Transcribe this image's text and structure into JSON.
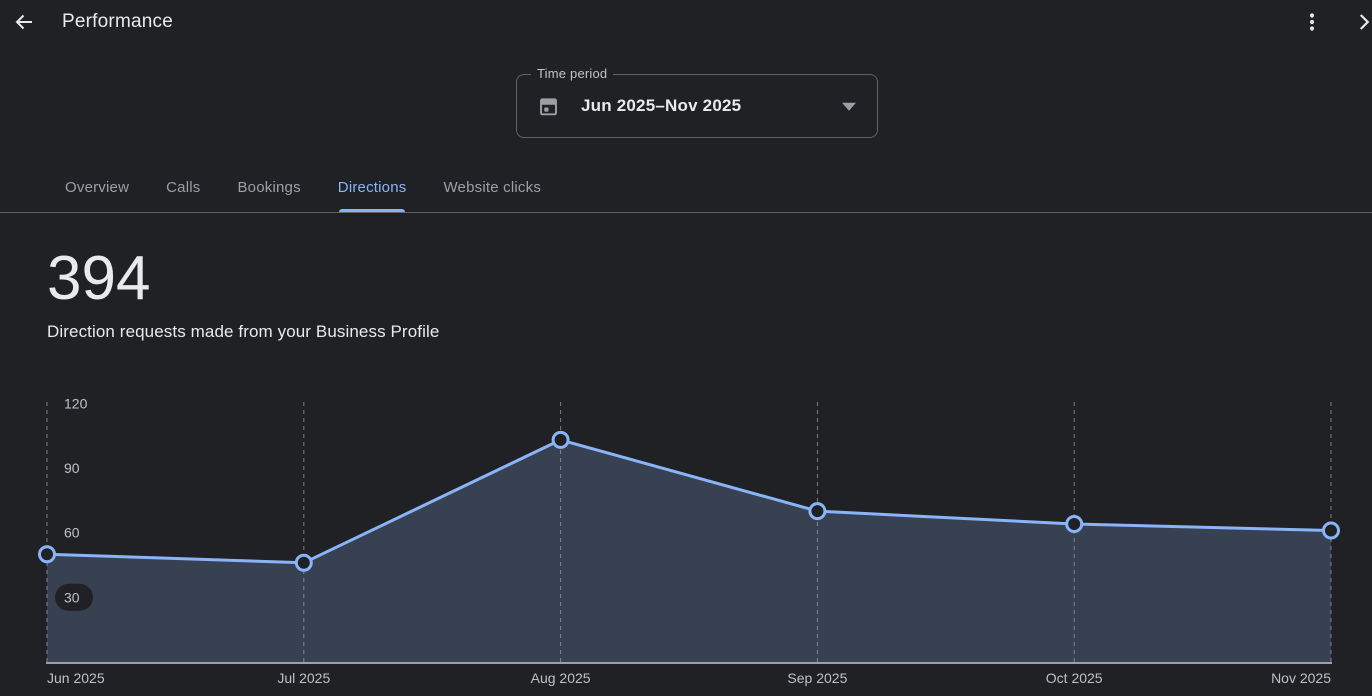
{
  "header": {
    "title": "Performance",
    "icons": {
      "back": "arrow-left",
      "menu": "kebab-menu",
      "forward": "chevron-right"
    }
  },
  "time_period": {
    "label": "Time period",
    "value": "Jun 2025–Nov 2025",
    "icon": "calendar"
  },
  "tabs": [
    {
      "label": "Overview",
      "active": false
    },
    {
      "label": "Calls",
      "active": false
    },
    {
      "label": "Bookings",
      "active": false
    },
    {
      "label": "Directions",
      "active": true
    },
    {
      "label": "Website clicks",
      "active": false
    }
  ],
  "metric": {
    "value": "394",
    "description": "Direction requests made from your Business Profile"
  },
  "chart_data": {
    "type": "area",
    "categories": [
      "Jun 2025",
      "Jul 2025",
      "Aug 2025",
      "Sep 2025",
      "Oct 2025",
      "Nov 2025"
    ],
    "values": [
      50,
      46,
      103,
      70,
      64,
      61
    ],
    "total": 394,
    "yticks": [
      30,
      60,
      90,
      120
    ],
    "ylim": [
      0,
      126
    ],
    "xlabel": "",
    "ylabel": "",
    "grid": "vertical-dashed",
    "legend": "none"
  },
  "colors": {
    "background": "#202124",
    "accent": "#8ab4f8",
    "area_fill": "rgba(138,180,248,0.22)",
    "marker_fill": "#202124",
    "grid_dash": "#9aa0a6",
    "baseline": "#9aa0a6",
    "tick_label": "#bdc1c6",
    "text_primary": "#e8eaed",
    "text_secondary": "#9aa0a6",
    "divider": "#5f6368"
  }
}
